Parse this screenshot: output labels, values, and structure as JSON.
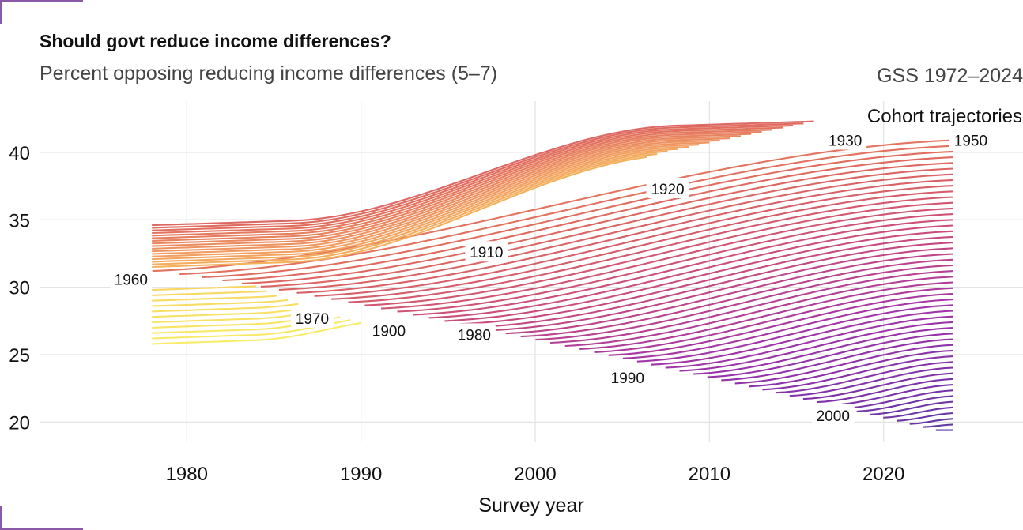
{
  "chart_data": {
    "type": "line",
    "title": "Should govt reduce income differences?",
    "subtitle": "Percent opposing reducing income differences (5–7)",
    "source": "GSS 1972–2024",
    "legend_title": "Cohort trajectories",
    "xlabel": "Survey year",
    "ylabel": "",
    "xlim": [
      1972,
      2028
    ],
    "ylim": [
      18.5,
      43.8
    ],
    "x_ticks": [
      1980,
      1990,
      2000,
      2010,
      2020
    ],
    "y_ticks": [
      20,
      25,
      30,
      35,
      40
    ],
    "grid": true,
    "color_scale": [
      "#f8f36a",
      "#f6c05a",
      "#f09a62",
      "#e06b5e",
      "#c94d7c",
      "#a335a8",
      "#7c32a8",
      "#4b3fa0"
    ],
    "series_note_visible": "",
    "cohort_labels": [
      {
        "text": "1960",
        "x": 1976.8,
        "y": 30.6
      },
      {
        "text": "1970",
        "x": 1987.2,
        "y": 27.7
      },
      {
        "text": "1900",
        "x": 1991.6,
        "y": 26.8
      },
      {
        "text": "1980",
        "x": 1996.5,
        "y": 26.5
      },
      {
        "text": "1910",
        "x": 1997.2,
        "y": 32.6
      },
      {
        "text": "1920",
        "x": 2007.6,
        "y": 37.3
      },
      {
        "text": "1990",
        "x": 2005.3,
        "y": 23.3
      },
      {
        "text": "2000",
        "x": 2017.1,
        "y": 20.5
      },
      {
        "text": "1930",
        "x": 2017.8,
        "y": 40.9
      },
      {
        "text": "1950",
        "x": 2025.0,
        "y": 40.9
      }
    ],
    "trajectory_curves": {
      "old_cohorts": {
        "count": 17,
        "x_start": 1978,
        "x_end": 2016,
        "top_start": 34.6,
        "top_end": 42.3,
        "bottom_start": 31.5,
        "bottom_end": 40.2,
        "end_step": 0.5
      },
      "young_cohorts": {
        "count": 11,
        "x_start": 1978,
        "x_end_first": 1984,
        "x_end_last": 1990,
        "top_start": 29.8,
        "bottom_start": 25.8
      },
      "middle_cohorts": {
        "count": 52,
        "x_end": 2024,
        "start_first": 1978,
        "start_last": 2023,
        "start_value_first": 31.2,
        "start_value_last": 19.4,
        "end_value_first": 40.9,
        "end_value_last": 19.4
      }
    }
  }
}
